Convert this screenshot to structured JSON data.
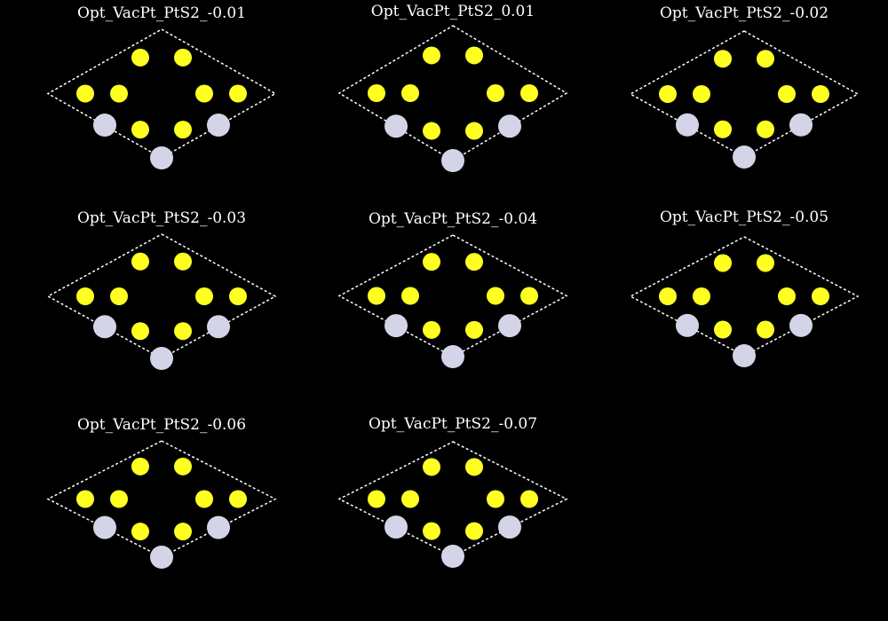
{
  "colors": {
    "background": "#000000",
    "cell_outline": "#ffffff",
    "atom_yellow": "#ffff22",
    "atom_pale": "#d4d4e8"
  },
  "panels": [
    {
      "title": "Opt_VacPt_PtS2_-0.01"
    },
    {
      "title": "Opt_VacPt_PtS2_0.01"
    },
    {
      "title": "Opt_VacPt_PtS2_-0.02"
    },
    {
      "title": "Opt_VacPt_PtS2_-0.03"
    },
    {
      "title": "Opt_VacPt_PtS2_-0.04"
    },
    {
      "title": "Opt_VacPt_PtS2_-0.05"
    },
    {
      "title": "Opt_VacPt_PtS2_-0.06"
    },
    {
      "title": "Opt_VacPt_PtS2_-0.07"
    }
  ]
}
